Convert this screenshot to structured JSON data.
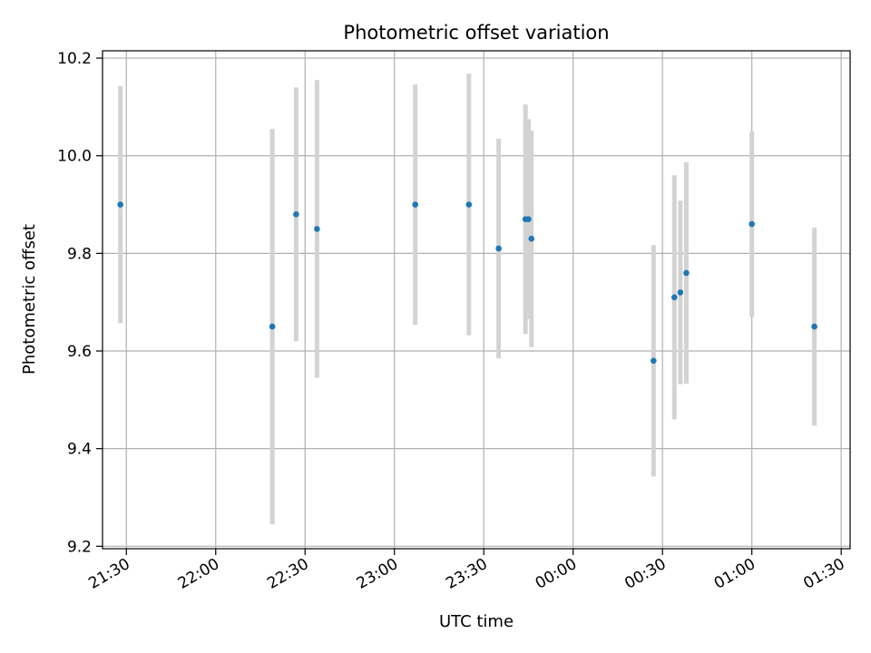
{
  "chart_data": {
    "type": "scatter",
    "title": "Photometric offset variation",
    "xlabel": "UTC time",
    "ylabel": "Photometric offset",
    "x_ticks": [
      "21:30",
      "22:00",
      "22:30",
      "23:00",
      "23:30",
      "00:00",
      "00:30",
      "01:00",
      "01:30"
    ],
    "y_ticks": [
      "9.2",
      "9.4",
      "9.6",
      "9.8",
      "10.0",
      "10.2"
    ],
    "xlim": [
      "21:22",
      "01:33"
    ],
    "ylim": [
      9.195,
      10.215
    ],
    "grid": true,
    "colors": {
      "point": "#1f77b4",
      "errorbar": "#d3d3d3",
      "grid": "#b0b0b0"
    },
    "points": [
      {
        "t": "21:28",
        "y": 9.9,
        "err": 0.243
      },
      {
        "t": "22:19",
        "y": 9.65,
        "err": 0.405
      },
      {
        "t": "22:27",
        "y": 9.88,
        "err": 0.26
      },
      {
        "t": "22:34",
        "y": 9.85,
        "err": 0.305
      },
      {
        "t": "23:07",
        "y": 9.9,
        "err": 0.246
      },
      {
        "t": "23:25",
        "y": 9.9,
        "err": 0.268
      },
      {
        "t": "23:35",
        "y": 9.81,
        "err": 0.225
      },
      {
        "t": "23:44",
        "y": 9.87,
        "err": 0.235
      },
      {
        "t": "23:45",
        "y": 9.87,
        "err": 0.205
      },
      {
        "t": "23:46",
        "y": 9.83,
        "err": 0.222
      },
      {
        "t": "00:27",
        "y": 9.58,
        "err": 0.237
      },
      {
        "t": "00:34",
        "y": 9.71,
        "err": 0.25
      },
      {
        "t": "00:36",
        "y": 9.72,
        "err": 0.188
      },
      {
        "t": "00:38",
        "y": 9.76,
        "err": 0.227
      },
      {
        "t": "01:00",
        "y": 9.86,
        "err": 0.19
      },
      {
        "t": "01:21",
        "y": 9.65,
        "err": 0.203
      }
    ]
  }
}
